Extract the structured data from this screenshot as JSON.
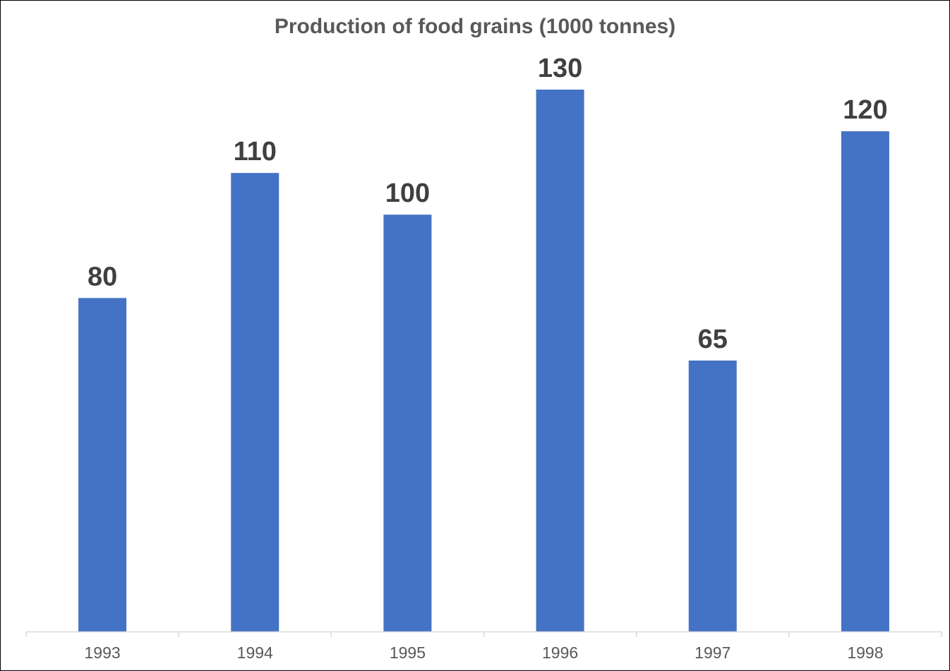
{
  "chart_data": {
    "type": "bar",
    "title": "Production of food grains (1000 tonnes)",
    "categories": [
      "1993",
      "1994",
      "1995",
      "1996",
      "1997",
      "1998"
    ],
    "values": [
      80,
      110,
      100,
      130,
      65,
      120
    ],
    "data_labels": true,
    "ylim": [
      0,
      130
    ],
    "y_axis_visible": false,
    "grid": false,
    "legend": "none",
    "bar_color": "#4472C4"
  }
}
